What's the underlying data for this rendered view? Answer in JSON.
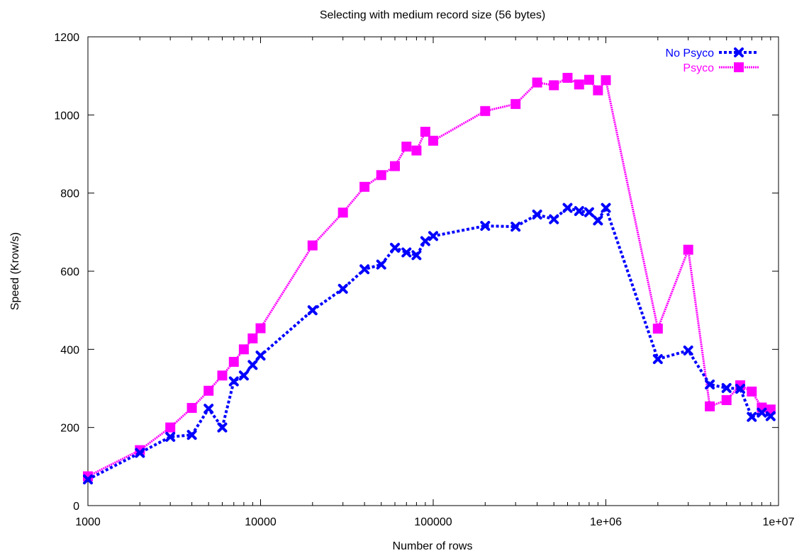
{
  "chart_data": {
    "type": "line",
    "title": "Selecting with medium record size (56 bytes)",
    "xlabel": "Number of rows",
    "ylabel": "Speed (Krow/s)",
    "xscale": "log",
    "xlim": [
      1000,
      10000000
    ],
    "ylim": [
      0,
      1200
    ],
    "x_ticks": [
      1000,
      10000,
      100000,
      1000000,
      10000000
    ],
    "x_tick_labels": [
      "1000",
      "10000",
      "100000",
      "1e+06",
      "1e+07"
    ],
    "y_ticks": [
      0,
      200,
      400,
      600,
      800,
      1000,
      1200
    ],
    "y_tick_labels": [
      "0",
      "200",
      "400",
      "600",
      "800",
      "1000",
      "1200"
    ],
    "grid": false,
    "legend_position": "top-right",
    "series": [
      {
        "name": "No Psyco",
        "color": "#0000ff",
        "marker": "x",
        "x": [
          1000,
          2000,
          3000,
          4000,
          5000,
          6000,
          7000,
          8000,
          9000,
          10000,
          20000,
          30000,
          40000,
          50000,
          60000,
          70000,
          80000,
          90000,
          100000,
          200000,
          300000,
          400000,
          500000,
          600000,
          700000,
          800000,
          900000,
          1000000,
          2000000,
          3000000,
          4000000,
          5000000,
          6000000,
          7000000,
          8000000,
          9000000
        ],
        "values": [
          67,
          135,
          176,
          181,
          248,
          200,
          318,
          333,
          360,
          384,
          500,
          555,
          605,
          617,
          660,
          648,
          641,
          677,
          690,
          716,
          714,
          745,
          733,
          762,
          754,
          751,
          730,
          762,
          375,
          397,
          310,
          301,
          299,
          227,
          238,
          229
        ]
      },
      {
        "name": "Psyco",
        "color": "#ff00ff",
        "marker": "square",
        "x": [
          1000,
          2000,
          3000,
          4000,
          5000,
          6000,
          7000,
          8000,
          9000,
          10000,
          20000,
          30000,
          40000,
          50000,
          60000,
          70000,
          80000,
          90000,
          100000,
          200000,
          300000,
          400000,
          500000,
          600000,
          700000,
          800000,
          900000,
          1000000,
          2000000,
          3000000,
          4000000,
          5000000,
          6000000,
          7000000,
          8000000,
          9000000
        ],
        "values": [
          75,
          142,
          200,
          250,
          294,
          333,
          368,
          400,
          428,
          454,
          666,
          750,
          816,
          846,
          869,
          919,
          909,
          957,
          934,
          1010,
          1028,
          1083,
          1076,
          1095,
          1078,
          1090,
          1063,
          1089,
          453,
          655,
          254,
          270,
          308,
          292,
          251,
          246
        ]
      }
    ]
  }
}
